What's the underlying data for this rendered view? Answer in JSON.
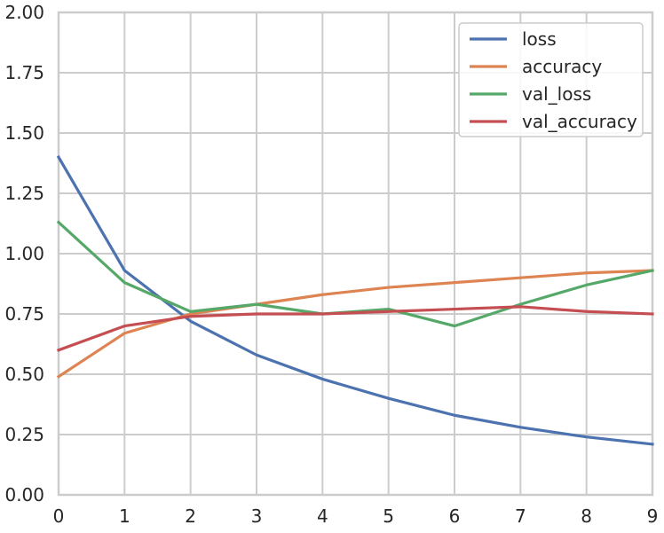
{
  "chart_data": {
    "type": "line",
    "title": "",
    "xlabel": "",
    "ylabel": "",
    "x": [
      0,
      1,
      2,
      3,
      4,
      5,
      6,
      7,
      8,
      9
    ],
    "xlim": [
      0,
      9
    ],
    "ylim": [
      0,
      2
    ],
    "xticks": [
      "0",
      "1",
      "2",
      "3",
      "4",
      "5",
      "6",
      "7",
      "8",
      "9"
    ],
    "yticks": [
      "0.00",
      "0.25",
      "0.50",
      "0.75",
      "1.00",
      "1.25",
      "1.50",
      "1.75",
      "2.00"
    ],
    "grid": true,
    "legend_position": "top-right",
    "series": [
      {
        "name": "loss",
        "color": "#4c72b0",
        "values": [
          1.4,
          0.93,
          0.72,
          0.58,
          0.48,
          0.4,
          0.33,
          0.28,
          0.24,
          0.21
        ]
      },
      {
        "name": "accuracy",
        "color": "#dd8452",
        "values": [
          0.49,
          0.67,
          0.75,
          0.79,
          0.83,
          0.86,
          0.88,
          0.9,
          0.92,
          0.93
        ]
      },
      {
        "name": "val_loss",
        "color": "#55a868",
        "values": [
          1.13,
          0.88,
          0.76,
          0.79,
          0.75,
          0.77,
          0.7,
          0.79,
          0.87,
          0.93
        ]
      },
      {
        "name": "val_accuracy",
        "color": "#c44e52",
        "values": [
          0.6,
          0.7,
          0.74,
          0.75,
          0.75,
          0.76,
          0.77,
          0.78,
          0.76,
          0.75
        ]
      }
    ]
  }
}
